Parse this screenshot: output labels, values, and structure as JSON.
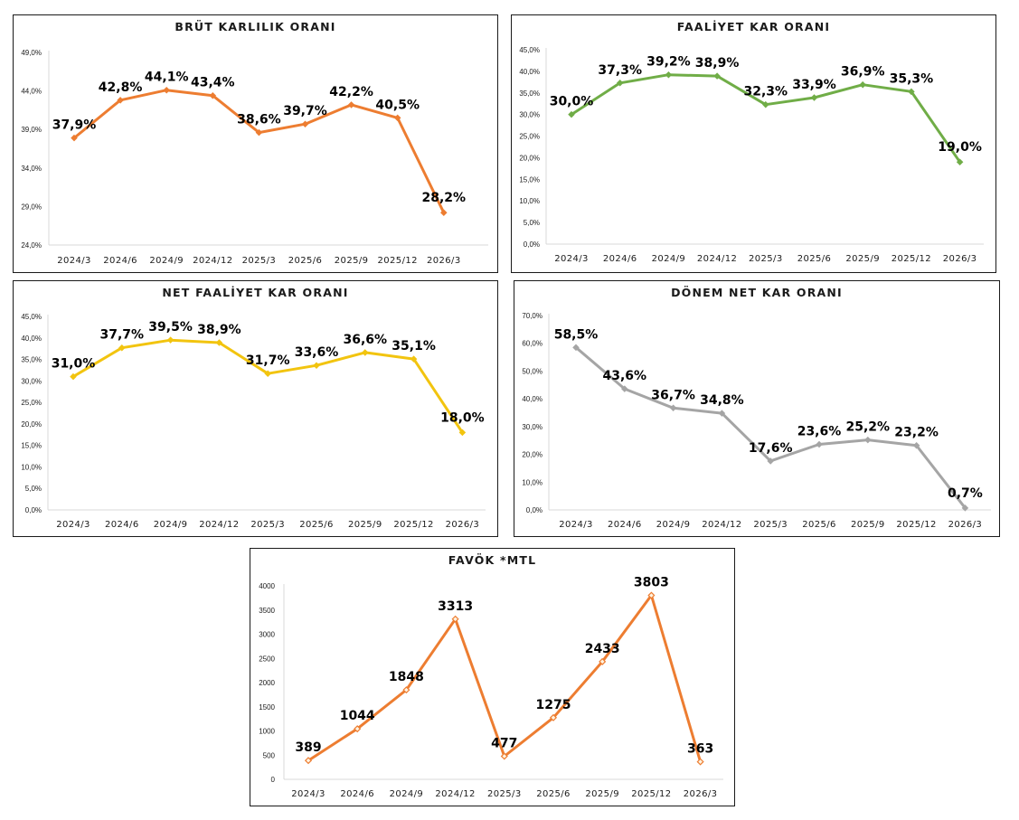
{
  "chart_data": [
    {
      "type": "line",
      "title": "BRÜT KARLILIK ORANI",
      "categories": [
        "2024/3",
        "2024/6",
        "2024/9",
        "2024/12",
        "2025/3",
        "2025/6",
        "2025/9",
        "2025/12",
        "2026/3"
      ],
      "values": [
        37.9,
        42.8,
        44.1,
        43.4,
        38.6,
        39.7,
        42.2,
        40.5,
        28.2
      ],
      "data_labels": [
        "37,9%",
        "42,8%",
        "44,1%",
        "43,4%",
        "38,6%",
        "39,7%",
        "42,2%",
        "40,5%",
        "28,2%"
      ],
      "ylim": [
        24,
        49
      ],
      "yticks": [
        24,
        29,
        34,
        39,
        44,
        49
      ],
      "ytick_labels": [
        "24,0%",
        "29,0%",
        "34,0%",
        "39,0%",
        "44,0%",
        "49,0%"
      ],
      "color": "#ED7D31",
      "marker": "diamond",
      "grid": false,
      "legend": "none"
    },
    {
      "type": "line",
      "title": "FAALİYET KAR ORANI",
      "categories": [
        "2024/3",
        "2024/6",
        "2024/9",
        "2024/12",
        "2025/3",
        "2025/6",
        "2025/9",
        "2025/12",
        "2026/3"
      ],
      "values": [
        30.0,
        37.3,
        39.2,
        38.9,
        32.3,
        33.9,
        36.9,
        35.3,
        19.0
      ],
      "data_labels": [
        "30,0%",
        "37,3%",
        "39,2%",
        "38,9%",
        "32,3%",
        "33,9%",
        "36,9%",
        "35,3%",
        "19,0%"
      ],
      "ylim": [
        0,
        45
      ],
      "yticks": [
        0,
        5,
        10,
        15,
        20,
        25,
        30,
        35,
        40,
        45
      ],
      "ytick_labels": [
        "0,0%",
        "5,0%",
        "10,0%",
        "15,0%",
        "20,0%",
        "25,0%",
        "30,0%",
        "35,0%",
        "40,0%",
        "45,0%"
      ],
      "color": "#70AD47",
      "marker": "diamond",
      "grid": false,
      "legend": "none"
    },
    {
      "type": "line",
      "title": "NET FAALİYET KAR ORANI",
      "categories": [
        "2024/3",
        "2024/6",
        "2024/9",
        "2024/12",
        "2025/3",
        "2025/6",
        "2025/9",
        "2025/12",
        "2026/3"
      ],
      "values": [
        31.0,
        37.7,
        39.5,
        38.9,
        31.7,
        33.6,
        36.6,
        35.1,
        18.0
      ],
      "data_labels": [
        "31,0%",
        "37,7%",
        "39,5%",
        "38,9%",
        "31,7%",
        "33,6%",
        "36,6%",
        "35,1%",
        "18,0%"
      ],
      "ylim": [
        0,
        45
      ],
      "yticks": [
        0,
        5,
        10,
        15,
        20,
        25,
        30,
        35,
        40,
        45
      ],
      "ytick_labels": [
        "0,0%",
        "5,0%",
        "10,0%",
        "15,0%",
        "20,0%",
        "25,0%",
        "30,0%",
        "35,0%",
        "40,0%",
        "45,0%"
      ],
      "color": "#F2C40F",
      "marker": "diamond",
      "grid": false,
      "legend": "none"
    },
    {
      "type": "line",
      "title": "DÖNEM NET KAR ORANI",
      "categories": [
        "2024/3",
        "2024/6",
        "2024/9",
        "2024/12",
        "2025/3",
        "2025/6",
        "2025/9",
        "2025/12",
        "2026/3"
      ],
      "values": [
        58.5,
        43.6,
        36.7,
        34.8,
        17.6,
        23.6,
        25.2,
        23.2,
        0.7
      ],
      "data_labels": [
        "58,5%",
        "43,6%",
        "36,7%",
        "34,8%",
        "17,6%",
        "23,6%",
        "25,2%",
        "23,2%",
        "0,7%"
      ],
      "ylim": [
        0,
        70
      ],
      "yticks": [
        0,
        10,
        20,
        30,
        40,
        50,
        60,
        70
      ],
      "ytick_labels": [
        "0,0%",
        "10,0%",
        "20,0%",
        "30,0%",
        "40,0%",
        "50,0%",
        "60,0%",
        "70,0%"
      ],
      "color": "#A5A5A5",
      "marker": "diamond",
      "grid": false,
      "legend": "none"
    },
    {
      "type": "line",
      "title": "FAVÖK *MTL",
      "categories": [
        "2024/3",
        "2024/6",
        "2024/9",
        "2024/12",
        "2025/3",
        "2025/6",
        "2025/9",
        "2025/12",
        "2026/3"
      ],
      "values": [
        389,
        1044,
        1848,
        3313,
        477,
        1275,
        2433,
        3803,
        363
      ],
      "data_labels": [
        "389",
        "1044",
        "1848",
        "3313",
        "477",
        "1275",
        "2433",
        "3803",
        "363"
      ],
      "ylim": [
        0,
        4000
      ],
      "yticks": [
        0,
        500,
        1000,
        1500,
        2000,
        2500,
        3000,
        3500,
        4000
      ],
      "ytick_labels": [
        "0",
        "500",
        "1000",
        "1500",
        "2000",
        "2500",
        "3000",
        "3500",
        "4000"
      ],
      "color": "#ED7D31",
      "marker": "hollow-diamond",
      "grid": false,
      "legend": "none"
    }
  ]
}
